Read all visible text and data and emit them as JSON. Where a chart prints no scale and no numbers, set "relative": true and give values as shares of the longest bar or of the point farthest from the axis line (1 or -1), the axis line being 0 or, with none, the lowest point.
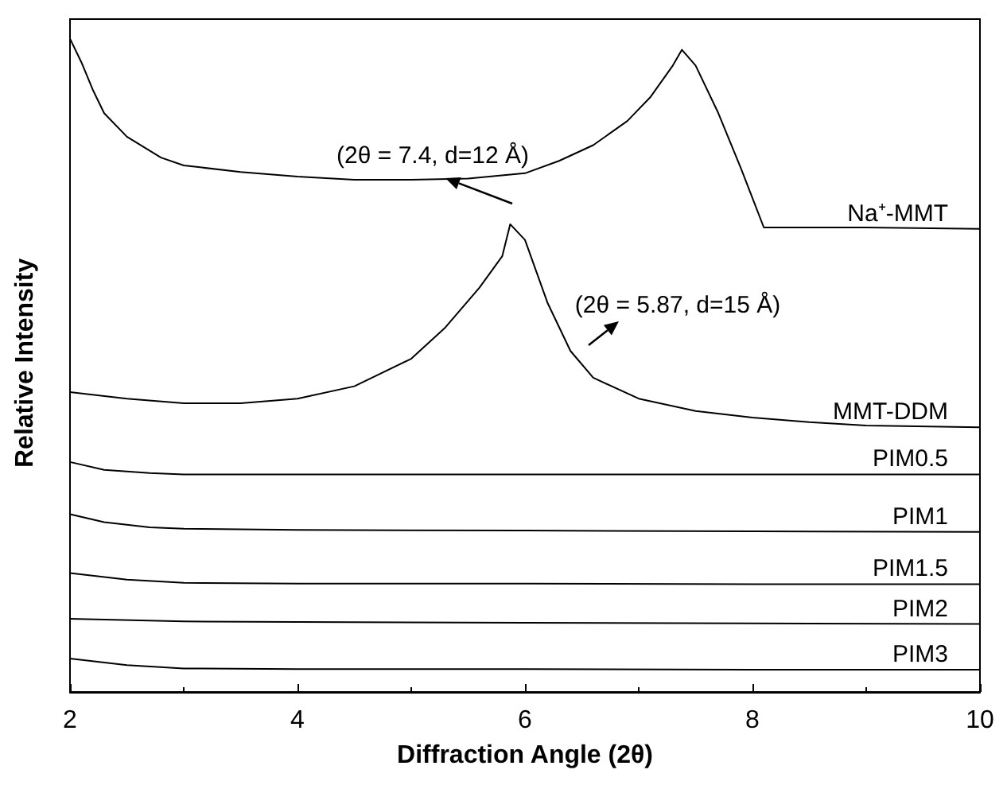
{
  "chart_data": {
    "type": "line",
    "relative": true,
    "xlabel": "Diffraction Angle (2θ)",
    "ylabel": "Relative Intensity",
    "xlim": [
      2,
      10
    ],
    "xticks": [
      2,
      4,
      6,
      8,
      10
    ],
    "grid": false,
    "legend": false,
    "marker": "none",
    "line_style": "solid",
    "series": [
      {
        "name": "Na⁺-MMT",
        "color": "#000000",
        "x": [
          2,
          2.1,
          2.2,
          2.3,
          2.5,
          2.8,
          3,
          3.5,
          4,
          4.5,
          5,
          5.5,
          6,
          6.3,
          6.6,
          6.9,
          7.1,
          7.3,
          7.38,
          7.5,
          7.7,
          7.9,
          8.1,
          8.5,
          9,
          10
        ],
        "values": [
          1.0,
          0.964,
          0.922,
          0.886,
          0.85,
          0.818,
          0.806,
          0.796,
          0.789,
          0.784,
          0.784,
          0.786,
          0.794,
          0.813,
          0.837,
          0.874,
          0.91,
          0.959,
          0.983,
          0.959,
          0.886,
          0.801,
          0.711,
          0.711,
          0.711,
          0.709
        ]
      },
      {
        "name": "MMT-DDM",
        "color": "#000000",
        "x": [
          2,
          2.5,
          3,
          3.5,
          4,
          4.5,
          5,
          5.3,
          5.6,
          5.8,
          5.87,
          6.0,
          6.2,
          6.4,
          6.6,
          7,
          7.5,
          8,
          8.5,
          9,
          10
        ],
        "values": [
          0.459,
          0.449,
          0.442,
          0.442,
          0.449,
          0.468,
          0.51,
          0.558,
          0.619,
          0.667,
          0.716,
          0.692,
          0.595,
          0.522,
          0.481,
          0.449,
          0.43,
          0.42,
          0.413,
          0.408,
          0.405
        ]
      },
      {
        "name": "PIM0.5",
        "color": "#000000",
        "x": [
          2,
          2.3,
          2.7,
          3,
          4,
          6,
          8,
          10
        ],
        "values": [
          0.352,
          0.34,
          0.335,
          0.333,
          0.333,
          0.333,
          0.333,
          0.333
        ]
      },
      {
        "name": "PIM1",
        "color": "#000000",
        "x": [
          2,
          2.3,
          2.7,
          3,
          4,
          6,
          8,
          10
        ],
        "values": [
          0.272,
          0.26,
          0.252,
          0.25,
          0.248,
          0.247,
          0.246,
          0.245
        ]
      },
      {
        "name": "PIM1.5",
        "color": "#000000",
        "x": [
          2,
          2.5,
          3,
          4,
          6,
          8,
          10
        ],
        "values": [
          0.182,
          0.172,
          0.167,
          0.166,
          0.166,
          0.165,
          0.165
        ]
      },
      {
        "name": "PIM2",
        "color": "#000000",
        "x": [
          2,
          3,
          4,
          6,
          8,
          10
        ],
        "values": [
          0.112,
          0.108,
          0.107,
          0.106,
          0.105,
          0.104
        ]
      },
      {
        "name": "PIM3",
        "color": "#000000",
        "x": [
          2,
          2.5,
          3,
          4,
          6,
          8,
          10
        ],
        "values": [
          0.051,
          0.041,
          0.036,
          0.035,
          0.035,
          0.034,
          0.034
        ]
      }
    ],
    "annotations": [
      "(2θ = 7.4, d=12 Å)",
      "(2θ = 5.87, d=15 Å)"
    ]
  }
}
